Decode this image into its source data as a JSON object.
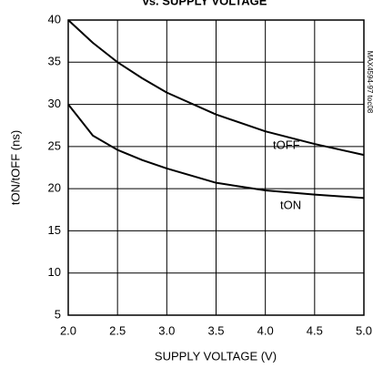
{
  "chart_data": {
    "type": "line",
    "title": "vs. SUPPLY VOLTAGE",
    "x_label": "SUPPLY VOLTAGE (V)",
    "y_label": "tON/tOFF (ns)",
    "annotation": "MAX4594-97 toc08",
    "x": [
      2.0,
      2.25,
      2.5,
      2.75,
      3.0,
      3.5,
      4.0,
      4.5,
      5.0
    ],
    "series": [
      {
        "name": "tOFF",
        "color": "#000000",
        "values": [
          40,
          37.3,
          35,
          33.1,
          31.4,
          28.8,
          26.8,
          25.3,
          24
        ]
      },
      {
        "name": "tON",
        "color": "#000000",
        "values": [
          30,
          26.3,
          24.6,
          23.4,
          22.4,
          20.7,
          19.8,
          19.3,
          18.9
        ]
      }
    ],
    "xlim": [
      2.0,
      5.0
    ],
    "ylim": [
      5,
      40
    ],
    "xticks": [
      {
        "value": 2.0,
        "label": "2.0"
      },
      2.5,
      {
        "value": 3.0,
        "label": "3.0"
      },
      3.5,
      {
        "value": 4.0,
        "label": "4.0"
      },
      4.5,
      {
        "value": 5.0,
        "label": "5.0"
      }
    ],
    "yticks": [
      5,
      10,
      15,
      20,
      25,
      30,
      35,
      40
    ],
    "grid": true
  }
}
